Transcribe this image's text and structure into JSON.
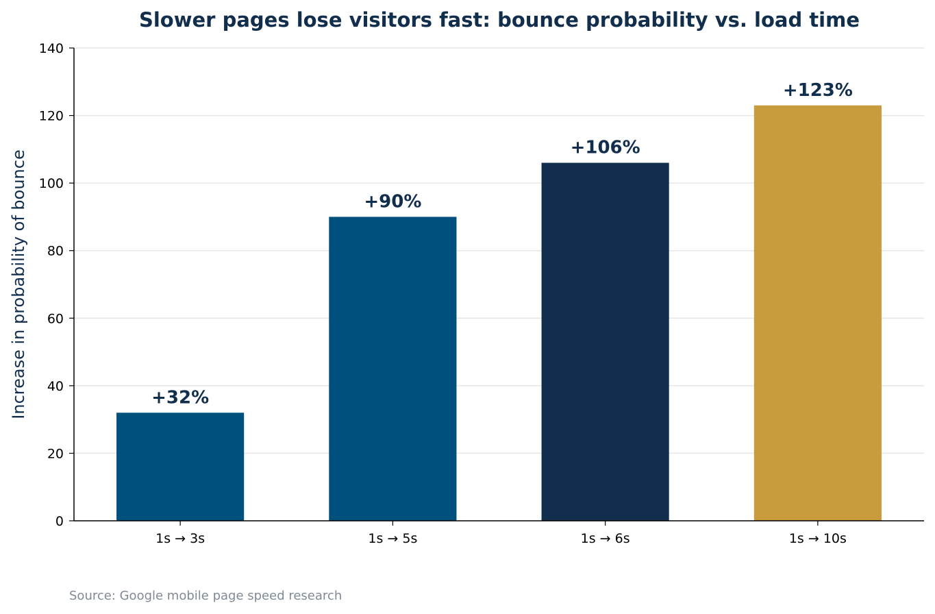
{
  "chart_data": {
    "type": "bar",
    "title": "Slower pages lose visitors fast: bounce probability vs. load time",
    "xlabel": "",
    "ylabel": "Increase in probability of bounce",
    "categories": [
      "1s → 3s",
      "1s → 5s",
      "1s → 6s",
      "1s → 10s"
    ],
    "values": [
      32,
      90,
      106,
      123
    ],
    "data_labels": [
      "+32%",
      "+90%",
      "+106%",
      "+123%"
    ],
    "bar_colors": [
      "#00507d",
      "#00507d",
      "#112e4d",
      "#c89b3c"
    ],
    "ylim": [
      0,
      140
    ],
    "yticks": [
      0,
      20,
      40,
      60,
      80,
      100,
      120,
      140
    ],
    "grid": true,
    "legend": "none"
  },
  "source": "Source: Google mobile page speed research",
  "colors": {
    "title": "#112e4d",
    "label": "#112e4d",
    "grid": "#e6e6e6",
    "axis": "#000000",
    "source": "#7f8a96"
  }
}
